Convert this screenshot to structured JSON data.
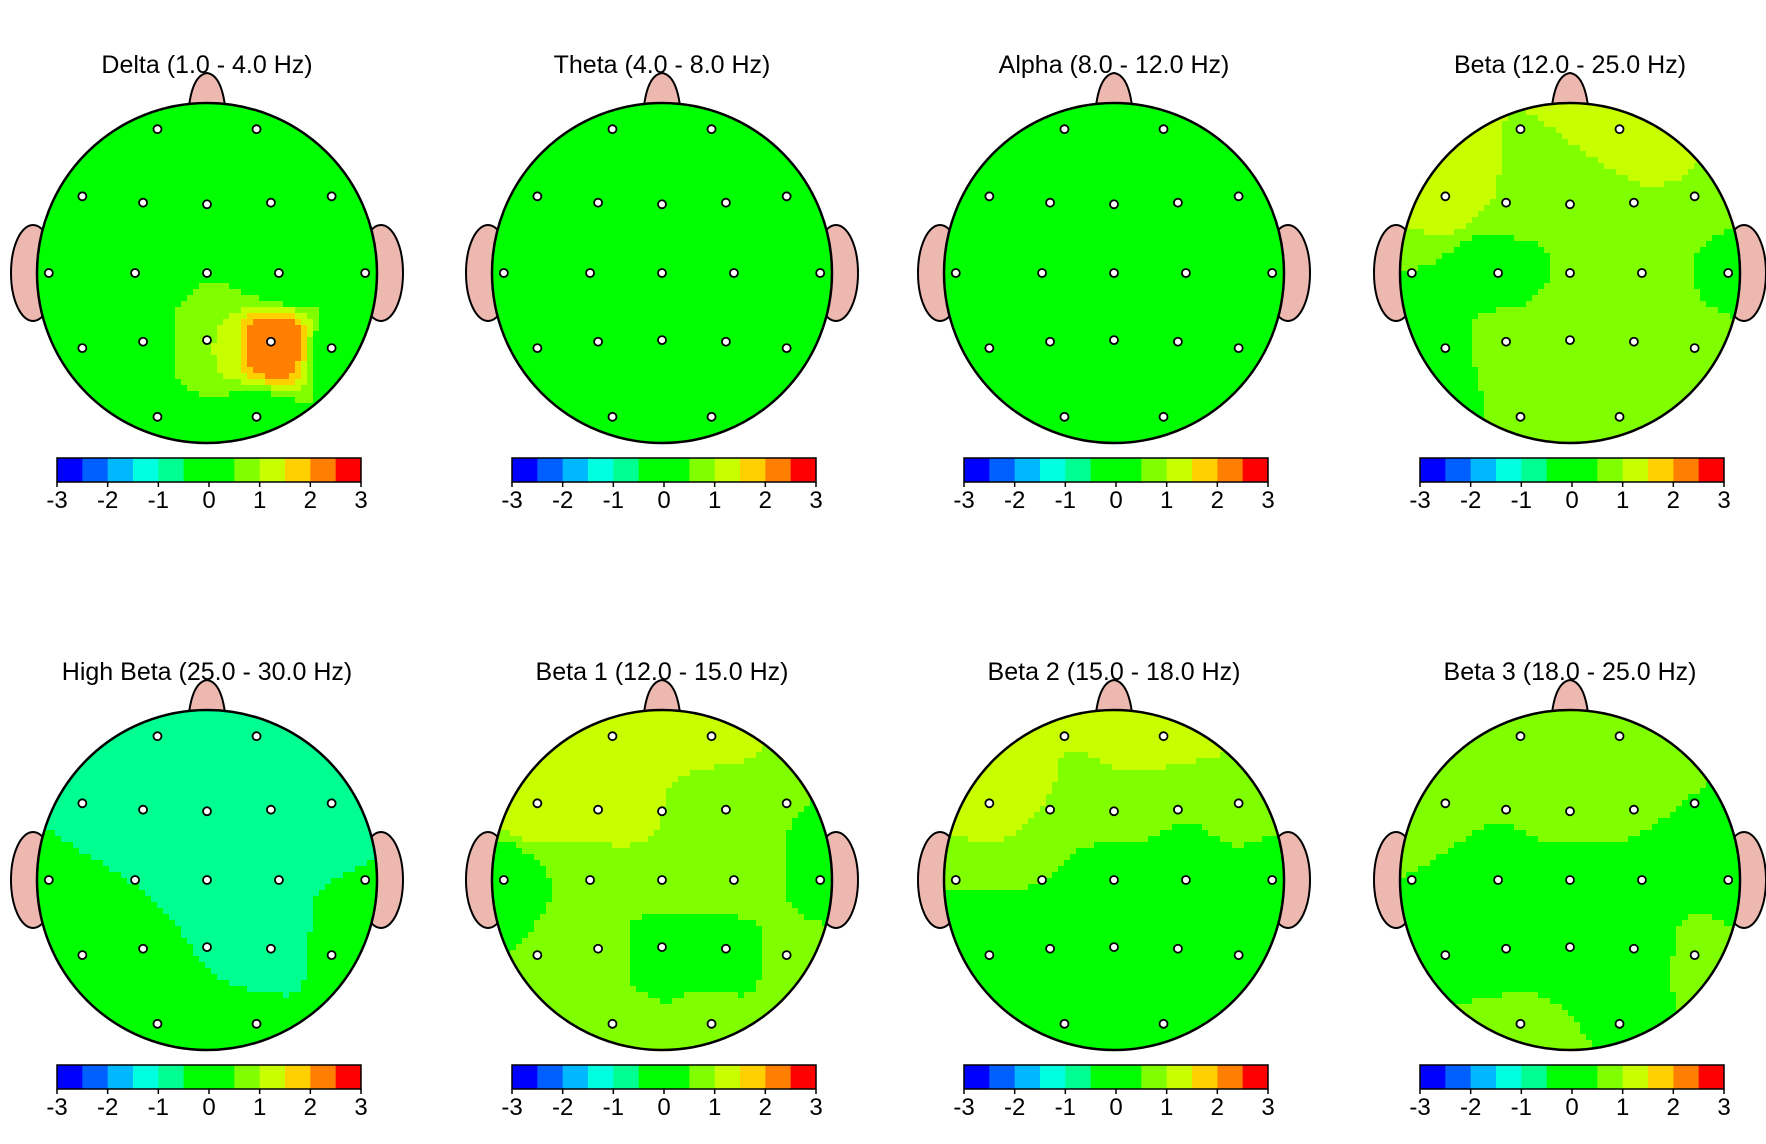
{
  "chart_data": [
    {
      "type": "heatmap",
      "title": "Delta (1.0 - 4.0 Hz)",
      "values": [
        0,
        0,
        0,
        -0.5,
        0,
        0,
        -0.5,
        0,
        0,
        0.5,
        0,
        0,
        -0.5,
        0,
        1,
        2.5,
        0,
        0,
        0,
        0,
        0,
        0,
        0,
        0,
        0,
        0,
        0,
        0,
        0
      ]
    },
    {
      "type": "heatmap",
      "title": "Theta (4.0 - 8.0 Hz)",
      "values": [
        0,
        0,
        0,
        0,
        0,
        0,
        0,
        0,
        0,
        0,
        0,
        0,
        0,
        0,
        0,
        0.5,
        0,
        0,
        0,
        0,
        0,
        0,
        0,
        0,
        0,
        0,
        0,
        0,
        0
      ]
    },
    {
      "type": "heatmap",
      "title": "Alpha (8.0 - 12.0 Hz)",
      "values": [
        0,
        0,
        0,
        0,
        0,
        0,
        0,
        0,
        0,
        0,
        0,
        0,
        0,
        0,
        0,
        -0.5,
        0,
        0,
        0,
        0,
        0,
        0,
        0,
        0,
        0,
        0,
        0,
        0,
        0
      ]
    },
    {
      "type": "heatmap",
      "title": "Beta (12.0 - 25.0 Hz)",
      "values": [
        1,
        1.5,
        1.5,
        1,
        0.5,
        1,
        1,
        0.5,
        0,
        0.5,
        1,
        0,
        -0.5,
        1,
        1,
        1,
        1,
        0.5,
        1,
        1,
        1,
        1,
        0.5,
        1,
        1,
        1,
        0.5,
        1,
        1
      ]
    },
    {
      "type": "heatmap",
      "title": "High Beta (25.0 - 30.0 Hz)",
      "values": [
        -0.5,
        -0.5,
        -0.5,
        -0.5,
        -0.5,
        -1,
        -0.5,
        -0.5,
        -0.5,
        -0.5,
        -0.5,
        -0.5,
        -0.5,
        -0.5,
        -0.5,
        -1,
        0,
        0,
        0,
        -0.5,
        -0.5,
        -0.5,
        0,
        0,
        0,
        -0.5,
        -0.5,
        0,
        0
      ]
    },
    {
      "type": "heatmap",
      "title": "Beta 1 (12.0 - 15.0 Hz)",
      "values": [
        1.5,
        1.5,
        1.5,
        1.5,
        1,
        0.5,
        0.5,
        0,
        0.5,
        1,
        1,
        0,
        0.5,
        1,
        0,
        0,
        1,
        1,
        1,
        1,
        0.5,
        1,
        1,
        1,
        1,
        1.5,
        1,
        1.5,
        1.5
      ]
    },
    {
      "type": "heatmap",
      "title": "Beta 2 (15.0 - 18.0 Hz)",
      "values": [
        1,
        1.5,
        1.5,
        1,
        1,
        0.5,
        1,
        0.5,
        0.5,
        0,
        0,
        0,
        0,
        0.5,
        0,
        0,
        0.5,
        0.5,
        0.5,
        0.5,
        0,
        0,
        0,
        0,
        0,
        0,
        0,
        0,
        0
      ]
    },
    {
      "type": "heatmap",
      "title": "Beta 3 (18.0 - 25.0 Hz)",
      "values": [
        1,
        1,
        1,
        0.5,
        1,
        0.5,
        0.5,
        0.5,
        0,
        0,
        0.5,
        0,
        0.5,
        0,
        0,
        -0.5,
        1,
        1,
        0.5,
        0.5,
        0.5,
        1,
        1,
        0.5,
        0.5,
        1,
        1,
        1,
        1
      ]
    }
  ],
  "colorbar": {
    "ticks": [
      "-3",
      "-2",
      "-1",
      "0",
      "1",
      "2",
      "3"
    ],
    "range": [
      -3,
      3
    ],
    "colors": [
      "#0000ff",
      "#0060ff",
      "#00b8ff",
      "#00ffe0",
      "#00ff90",
      "#00ff00",
      "#00ff00",
      "#80ff00",
      "#c8ff00",
      "#ffd000",
      "#ff8000",
      "#ff0000"
    ]
  },
  "colors": {
    "head_fill": "#00ff00",
    "ear_nose": "#ecb8b0",
    "outline": "#000000"
  }
}
